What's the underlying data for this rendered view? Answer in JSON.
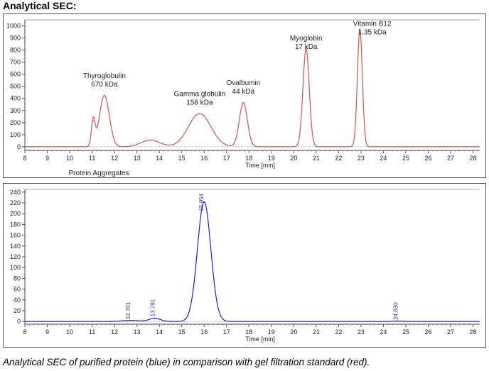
{
  "heading": "Analytical SEC:",
  "caption": "Analytical SEC of purified protein (blue) in comparison with gel filtration standard (red).",
  "chart_data": [
    {
      "type": "line",
      "name": "standard",
      "color": "#d9534f",
      "xlabel": "Time [min]",
      "ylabel": "",
      "xlim": [
        8,
        28.3
      ],
      "ylim": [
        -30,
        1050
      ],
      "xticks": [
        8,
        9,
        10,
        11,
        12,
        13,
        14,
        15,
        16,
        17,
        18,
        19,
        20,
        21,
        22,
        23,
        24,
        25,
        26,
        27,
        28
      ],
      "yticks": [
        0,
        100,
        200,
        300,
        400,
        500,
        600,
        700,
        800,
        900,
        1000
      ],
      "grid": false,
      "peaks": [
        {
          "x": 11.05,
          "y": 215,
          "w": 0.08
        },
        {
          "x": 11.55,
          "y": 425,
          "w": 0.22
        },
        {
          "x": 13.6,
          "y": 55,
          "w": 0.42
        },
        {
          "x": 15.8,
          "y": 275,
          "w": 0.5
        },
        {
          "x": 17.75,
          "y": 365,
          "w": 0.18
        },
        {
          "x": 20.55,
          "y": 815,
          "w": 0.14
        },
        {
          "x": 22.95,
          "y": 975,
          "w": 0.11
        }
      ],
      "annotations": [
        {
          "x": 11.55,
          "y": 570,
          "lines": [
            "Thyroglobulin",
            "670 kDa"
          ]
        },
        {
          "x": 15.8,
          "y": 420,
          "lines": [
            "Gamma globulin",
            "158 kDa"
          ]
        },
        {
          "x": 17.75,
          "y": 510,
          "lines": [
            "Ovalbumin",
            "44 kDa"
          ]
        },
        {
          "x": 20.55,
          "y": 880,
          "lines": [
            "Myoglobin",
            "17 kDa"
          ]
        },
        {
          "x": 23.5,
          "y": 1000,
          "lines": [
            "Vitamin B12",
            "1.35 kDa"
          ]
        },
        {
          "x": 11.3,
          "y": -235,
          "lines": [
            "Protein Aggregates"
          ]
        }
      ]
    },
    {
      "type": "line",
      "name": "protein",
      "color": "#1f1fd6",
      "xlabel": "Time [min]",
      "ylabel": "",
      "xlim": [
        8,
        28.3
      ],
      "ylim": [
        -5,
        245
      ],
      "xticks": [
        8,
        9,
        10,
        11,
        12,
        13,
        14,
        15,
        16,
        17,
        18,
        19,
        20,
        21,
        22,
        23,
        24,
        25,
        26,
        27,
        28
      ],
      "yticks": [
        0,
        20,
        40,
        60,
        80,
        100,
        120,
        140,
        160,
        180,
        200,
        220,
        240
      ],
      "grid": false,
      "peaks": [
        {
          "x": 12.7,
          "y": 2,
          "w": 0.35
        },
        {
          "x": 13.791,
          "y": 6,
          "w": 0.25
        },
        {
          "x": 16.0,
          "y": 222,
          "w": 0.3
        },
        {
          "x": 24.63,
          "y": 0.8,
          "w": 0.2
        }
      ],
      "peak_labels": [
        {
          "x": 12.701,
          "y": 4,
          "text": "12.701"
        },
        {
          "x": 13.791,
          "y": 9,
          "text": "13.791"
        },
        {
          "x": 15.954,
          "y": 205,
          "text": "15.954"
        },
        {
          "x": 24.63,
          "y": 3,
          "text": "24.630"
        }
      ]
    }
  ]
}
